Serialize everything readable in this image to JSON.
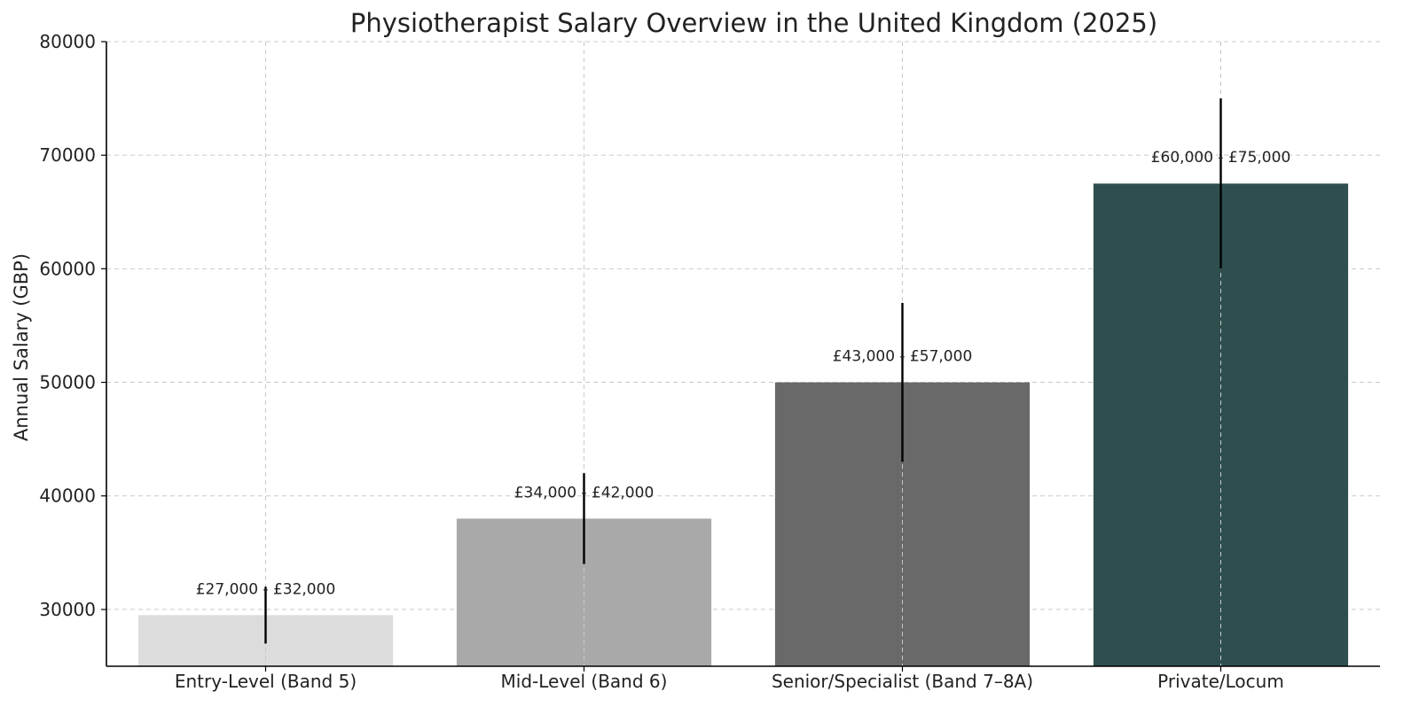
{
  "chart_data": {
    "type": "bar",
    "title": "Physiotherapist Salary Overview in the United Kingdom (2025)",
    "xlabel": "",
    "ylabel": "Annual Salary (GBP)",
    "categories": [
      "Entry-Level (Band 5)",
      "Mid-Level (Band 6)",
      "Senior/Specialist (Band 7–8A)",
      "Private/Locum"
    ],
    "values": [
      29500,
      38000,
      50000,
      67500
    ],
    "ranges": [
      [
        27000,
        32000
      ],
      [
        34000,
        42000
      ],
      [
        43000,
        57000
      ],
      [
        60000,
        75000
      ]
    ],
    "range_labels": [
      "£27,000 - £32,000",
      "£34,000 - £42,000",
      "£43,000 - £57,000",
      "£60,000 - £75,000"
    ],
    "ylim": [
      25000,
      80000
    ],
    "yticks": [
      30000,
      40000,
      50000,
      60000,
      70000,
      80000
    ],
    "grid": true,
    "colors": [
      "#dcdcdc",
      "#a9a9a9",
      "#696969",
      "#2f4f4f"
    ],
    "errorbar_color": "#000000"
  }
}
